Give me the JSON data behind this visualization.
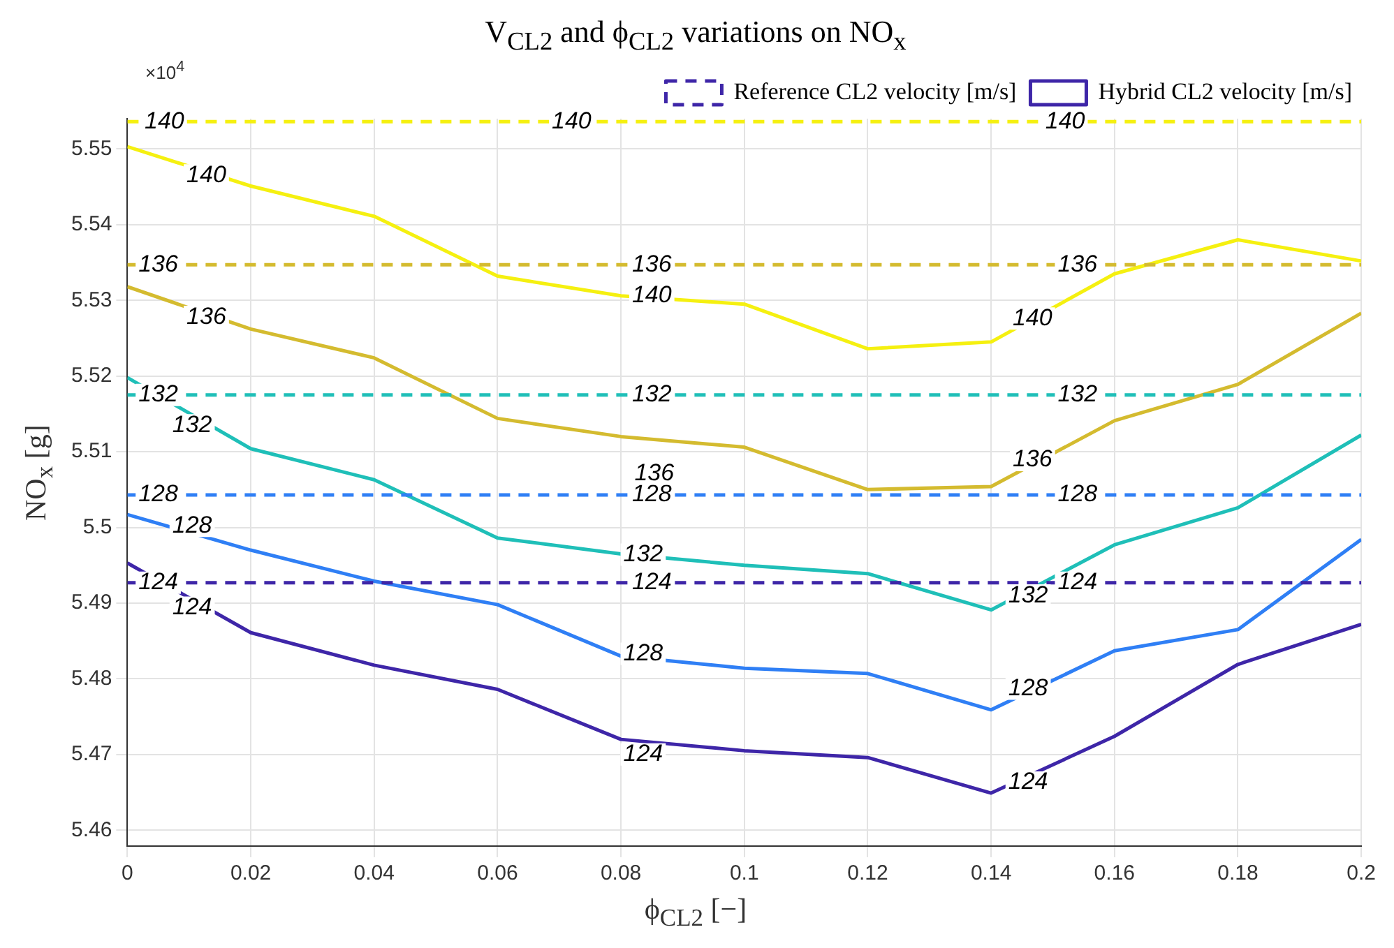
{
  "chart_data": {
    "type": "line",
    "title": "V$_{CL2}$ and ϕ$_{CL2}$ variations on NO$_{x}$",
    "xlabel": "ϕ$_{CL2}$ [−]",
    "ylabel": "NO$_{x}$ [g]",
    "x": [
      0,
      0.02,
      0.04,
      0.06,
      0.08,
      0.1,
      0.12,
      0.14,
      0.16,
      0.18,
      0.2
    ],
    "xlim": [
      0,
      0.2
    ],
    "xticks": [
      0,
      0.02,
      0.04,
      0.06,
      0.08,
      0.1,
      0.12,
      0.14,
      0.16,
      0.18,
      0.2
    ],
    "ylim": [
      5.4579,
      5.554
    ],
    "yticks": [
      5.46,
      5.47,
      5.48,
      5.49,
      5.5,
      5.51,
      5.52,
      5.53,
      5.54,
      5.55
    ],
    "grid": true,
    "legend": "top right",
    "marker": "none",
    "series": [
      {
        "name": "Reference CL2 velocity [m/s]",
        "color": "#3e26a8",
        "line_style": "dashed",
        "values": [
          5.4927,
          5.4927,
          5.4927,
          5.4927,
          5.4927,
          5.4927,
          5.4927,
          5.4927,
          5.4927,
          5.4927,
          5.4927
        ]
      },
      {
        "color": "#2f7ff5",
        "line_style": "dashed",
        "values": [
          5.5043,
          5.5043,
          5.5043,
          5.5043,
          5.5043,
          5.5043,
          5.5043,
          5.5043,
          5.5043,
          5.5043,
          5.5043
        ]
      },
      {
        "color": "#1fbfb8",
        "line_style": "dashed",
        "values": [
          5.5175,
          5.5175,
          5.5175,
          5.5175,
          5.5175,
          5.5175,
          5.5175,
          5.5175,
          5.5175,
          5.5175,
          5.5175
        ]
      },
      {
        "color": "#d4bb2f",
        "line_style": "dashed",
        "values": [
          5.5347,
          5.5347,
          5.5347,
          5.5347,
          5.5347,
          5.5347,
          5.5347,
          5.5347,
          5.5347,
          5.5347,
          5.5347
        ]
      },
      {
        "color": "#f5f010",
        "line_style": "dashed",
        "values": [
          5.5536,
          5.5536,
          5.5536,
          5.5536,
          5.5536,
          5.5536,
          5.5536,
          5.5536,
          5.5536,
          5.5536,
          5.5536
        ]
      },
      {
        "name": "Hybrid CL2 velocity [m/s]",
        "color": "#3e26a8",
        "line_style": "solid",
        "values": [
          5.4953,
          5.4861,
          5.4818,
          5.4786,
          5.472,
          5.4705,
          5.4696,
          5.4649,
          5.4724,
          5.4819,
          5.4872
        ]
      },
      {
        "color": "#2f7ff5",
        "line_style": "solid",
        "values": [
          5.5017,
          5.497,
          5.4929,
          5.4898,
          5.483,
          5.4814,
          5.4807,
          5.4759,
          5.4837,
          5.4865,
          5.4984
        ]
      },
      {
        "color": "#1fbfb8",
        "line_style": "solid",
        "values": [
          5.5198,
          5.5104,
          5.5063,
          5.4986,
          5.4965,
          5.495,
          5.4939,
          5.4891,
          5.4977,
          5.5026,
          5.5122
        ]
      },
      {
        "color": "#d4bb2f",
        "line_style": "solid",
        "values": [
          5.5318,
          5.5262,
          5.5224,
          5.5144,
          5.512,
          5.5106,
          5.505,
          5.5054,
          5.5141,
          5.5189,
          5.5283
        ]
      },
      {
        "color": "#f5f010",
        "line_style": "solid",
        "values": [
          5.5503,
          5.5451,
          5.5411,
          5.5332,
          5.5306,
          5.5295,
          5.5236,
          5.5245,
          5.5335,
          5.538,
          5.5352
        ]
      }
    ],
    "annotations": [
      "×10$^{4}$",
      {
        "text": "124",
        "x": 0.005,
        "y": 5.4927
      },
      {
        "text": "124",
        "x": 0.085,
        "y": 5.4927
      },
      {
        "text": "124",
        "x": 0.154,
        "y": 5.4927
      },
      {
        "text": "128",
        "x": 0.005,
        "y": 5.5043
      },
      {
        "text": "128",
        "x": 0.085,
        "y": 5.5043
      },
      {
        "text": "128",
        "x": 0.154,
        "y": 5.5043
      },
      {
        "text": "132",
        "x": 0.005,
        "y": 5.5175
      },
      {
        "text": "132",
        "x": 0.085,
        "y": 5.5175
      },
      {
        "text": "132",
        "x": 0.154,
        "y": 5.5175
      },
      {
        "text": "136",
        "x": 0.005,
        "y": 5.5347
      },
      {
        "text": "136",
        "x": 0.085,
        "y": 5.5347
      },
      {
        "text": "136",
        "x": 0.154,
        "y": 5.5347
      },
      {
        "text": "140",
        "x": 0.006,
        "y": 5.5536
      },
      {
        "text": "140",
        "x": 0.072,
        "y": 5.5536
      },
      {
        "text": "140",
        "x": 0.152,
        "y": 5.5536
      },
      {
        "text": "124",
        "x": 0.0105,
        "y": 5.4894
      },
      {
        "text": "124",
        "x": 0.0836,
        "y": 5.47
      },
      {
        "text": "124",
        "x": 0.146,
        "y": 5.4663
      },
      {
        "text": "128",
        "x": 0.0105,
        "y": 5.5002
      },
      {
        "text": "128",
        "x": 0.0836,
        "y": 5.4833
      },
      {
        "text": "128",
        "x": 0.146,
        "y": 5.4787
      },
      {
        "text": "132",
        "x": 0.0105,
        "y": 5.5135
      },
      {
        "text": "132",
        "x": 0.0836,
        "y": 5.4964
      },
      {
        "text": "132",
        "x": 0.146,
        "y": 5.491
      },
      {
        "text": "136",
        "x": 0.0128,
        "y": 5.5278
      },
      {
        "text": "136",
        "x": 0.0854,
        "y": 5.5071
      },
      {
        "text": "136",
        "x": 0.1467,
        "y": 5.5089
      },
      {
        "text": "140",
        "x": 0.0128,
        "y": 5.5465
      },
      {
        "text": "140",
        "x": 0.085,
        "y": 5.5306
      },
      {
        "text": "140",
        "x": 0.1467,
        "y": 5.5276
      }
    ]
  }
}
